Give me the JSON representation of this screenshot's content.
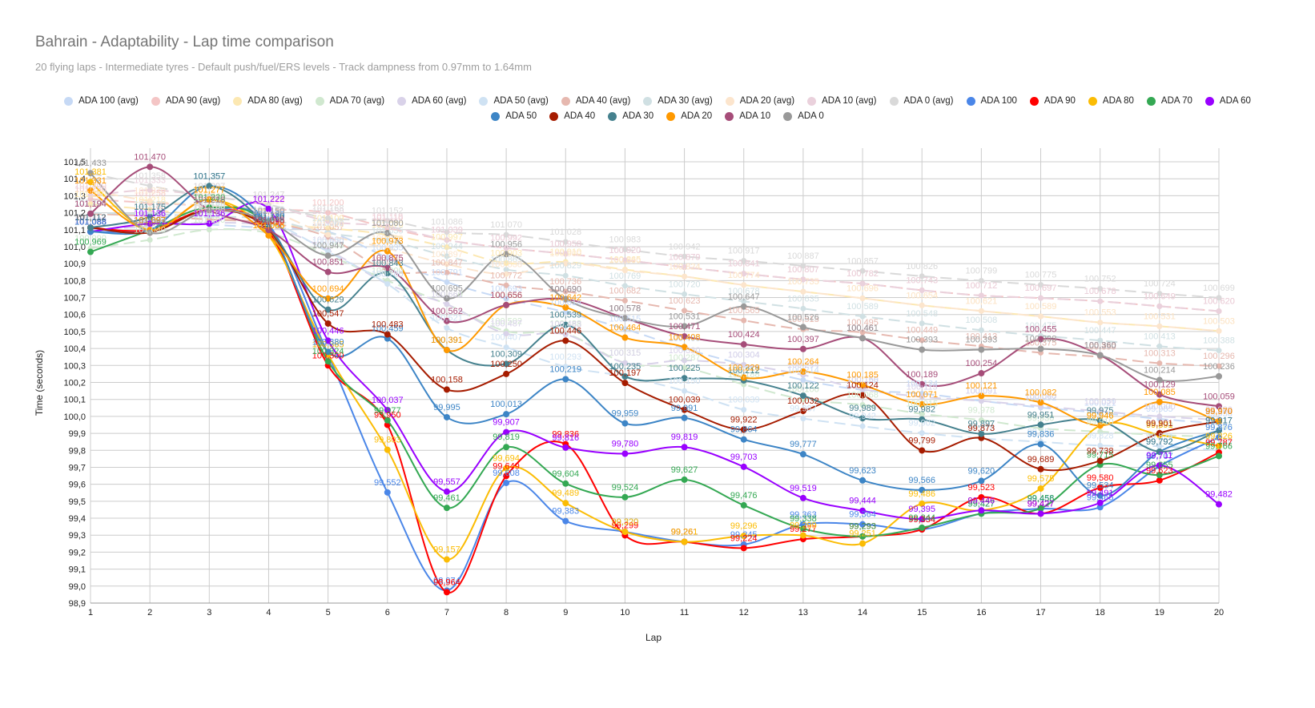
{
  "chart_data": {
    "type": "line",
    "title": "Bahrain - Adaptability - Lap time comparison",
    "subtitle": "20 flying laps - Intermediate tyres - Default push/fuel/ERS levels - Track dampness from 0.97mm to 1.64mm",
    "xlabel": "Lap",
    "ylabel": "Time (seconds)",
    "x": [
      1,
      2,
      3,
      4,
      5,
      6,
      7,
      8,
      9,
      10,
      11,
      12,
      13,
      14,
      15,
      16,
      17,
      18,
      19,
      20
    ],
    "x_tick_labels": [
      "1",
      "2",
      "3",
      "4",
      "5",
      "6",
      "7",
      "8",
      "9",
      "10",
      "11",
      "12",
      "13",
      "14",
      "15",
      "16",
      "17",
      "18",
      "19",
      "20"
    ],
    "ylim": [
      98.9,
      101.5
    ],
    "y_tick_labels": [
      "98,9",
      "99,0",
      "99,1",
      "99,2",
      "99,3",
      "99,4",
      "99,5",
      "99,6",
      "99,7",
      "99,8",
      "99,9",
      "100,0",
      "100,1",
      "100,2",
      "100,3",
      "100,4",
      "100,5",
      "100,6",
      "100,7",
      "100,8",
      "100,9",
      "101,0",
      "101,1",
      "101,2",
      "101,3",
      "101,4",
      "101,5"
    ],
    "grid": true,
    "legend_position": "top",
    "series": [
      {
        "name": "ADA 100 (avg)",
        "color": "#c6d9f5",
        "dashed": true,
        "values": [
          101.112,
          101.147,
          101.13,
          101.11,
          101.087,
          100.935,
          100.791,
          100.693,
          100.614,
          100.515,
          100.4,
          100.304,
          100.214,
          100.156,
          100.134,
          100.091,
          100.052,
          100.021,
          99.985,
          99.958
        ]
      },
      {
        "name": "ADA 90 (avg)",
        "color": "#f4c5c5",
        "dashed": true,
        "values": [
          101.28,
          101.258,
          101.24,
          101.22,
          101.2,
          101.11,
          101.039,
          100.992,
          100.958,
          100.92,
          100.879,
          100.841,
          100.807,
          100.782,
          100.743,
          100.712,
          100.697,
          100.678,
          100.649,
          100.62
        ]
      },
      {
        "name": "ADA 80 (avg)",
        "color": "#fce8b2",
        "dashed": true,
        "values": [
          101.25,
          101.218,
          101.18,
          101.13,
          101.109,
          101.07,
          100.997,
          100.903,
          100.91,
          100.865,
          100.824,
          100.774,
          100.735,
          100.696,
          100.654,
          100.621,
          100.589,
          100.553,
          100.531,
          100.503
        ]
      },
      {
        "name": "ADA 70 (avg)",
        "color": "#d0e8cf",
        "dashed": true,
        "values": [
          100.99,
          101.04,
          101.1,
          101.08,
          100.95,
          100.8,
          100.66,
          100.502,
          100.488,
          100.315,
          100.287,
          100.188,
          100.1,
          100.068,
          100.015,
          99.978,
          99.93,
          99.91,
          99.89,
          99.88
        ]
      },
      {
        "name": "ADA 60 (avg)",
        "color": "#d9d2e9",
        "dashed": true,
        "values": [
          101.1,
          101.12,
          101.14,
          101.12,
          100.98,
          100.78,
          100.661,
          100.487,
          100.483,
          100.315,
          100.33,
          100.304,
          100.244,
          100.16,
          100.115,
          100.091,
          100.06,
          100.03,
          100.0,
          99.98
        ]
      },
      {
        "name": "ADA 50 (avg)",
        "color": "#cfe2f3",
        "dashed": true,
        "values": [
          101.09,
          101.1,
          101.2,
          101.15,
          100.97,
          100.78,
          100.521,
          100.407,
          100.293,
          100.235,
          100.15,
          100.039,
          99.987,
          99.942,
          99.902,
          99.87,
          99.85,
          99.828,
          99.824,
          99.8
        ]
      },
      {
        "name": "ADA 40 (avg)",
        "color": "#e6b8af",
        "dashed": true,
        "values": [
          101.194,
          101.18,
          101.16,
          101.14,
          101.057,
          100.86,
          100.847,
          100.772,
          100.736,
          100.682,
          100.623,
          100.565,
          100.513,
          100.495,
          100.449,
          100.413,
          100.375,
          100.35,
          100.313,
          100.296
        ]
      },
      {
        "name": "ADA 30 (avg)",
        "color": "#d0e0e3",
        "dashed": true,
        "values": [
          101.2,
          101.19,
          101.18,
          101.16,
          101.08,
          101.035,
          100.944,
          100.865,
          100.829,
          100.769,
          100.72,
          100.678,
          100.635,
          100.589,
          100.548,
          100.508,
          100.475,
          100.447,
          100.413,
          100.388
        ]
      },
      {
        "name": "ADA 20 (avg)",
        "color": "#fce5cd",
        "dashed": true,
        "values": [
          101.331,
          101.27,
          101.24,
          101.21,
          101.07,
          100.99,
          100.897,
          100.838,
          100.9,
          100.86,
          100.824,
          100.774,
          100.735,
          100.696,
          100.654,
          100.621,
          100.589,
          100.553,
          100.531,
          100.503
        ]
      },
      {
        "name": "ADA 10 (avg)",
        "color": "#ead1dc",
        "dashed": true,
        "values": [
          101.3,
          101.333,
          101.297,
          101.247,
          101.15,
          101.119,
          101.039,
          100.992,
          100.958,
          100.92,
          100.879,
          100.841,
          100.807,
          100.782,
          100.743,
          100.712,
          100.697,
          100.678,
          100.649,
          100.62
        ]
      },
      {
        "name": "ADA 0 (avg)",
        "color": "#d9d9d9",
        "dashed": true,
        "values": [
          101.433,
          101.358,
          101.297,
          101.247,
          101.168,
          101.152,
          101.086,
          101.07,
          101.028,
          100.983,
          100.942,
          100.917,
          100.887,
          100.857,
          100.826,
          100.799,
          100.775,
          100.752,
          100.724,
          100.699
        ]
      },
      {
        "name": "ADA 100",
        "color": "#4a86e8",
        "dashed": false,
        "values": [
          101.088,
          101.097,
          101.216,
          101.13,
          100.365,
          99.552,
          98.974,
          99.608,
          99.383,
          99.32,
          99.261,
          99.245,
          99.363,
          99.364,
          99.334,
          99.427,
          99.456,
          99.465,
          99.707,
          99.876
        ]
      },
      {
        "name": "ADA 90",
        "color": "#ff0000",
        "dashed": false,
        "values": [
          101.112,
          101.097,
          101.216,
          101.09,
          100.3,
          99.95,
          98.964,
          99.649,
          99.836,
          99.299,
          99.261,
          99.224,
          99.277,
          99.293,
          99.334,
          99.523,
          99.427,
          99.58,
          99.623,
          99.787
        ]
      },
      {
        "name": "ADA 80",
        "color": "#fbbc04",
        "dashed": false,
        "values": [
          101.381,
          101.097,
          101.277,
          101.066,
          100.365,
          99.803,
          99.157,
          99.694,
          99.489,
          99.32,
          99.261,
          99.296,
          99.299,
          99.251,
          99.486,
          99.446,
          99.575,
          99.946,
          99.891,
          99.826
        ]
      },
      {
        "name": "ADA 70",
        "color": "#34a853",
        "dashed": false,
        "values": [
          100.969,
          101.097,
          101.23,
          101.11,
          100.324,
          99.977,
          99.461,
          99.819,
          99.604,
          99.524,
          99.627,
          99.476,
          99.338,
          99.293,
          99.344,
          99.427,
          99.458,
          99.715,
          99.655,
          99.766
        ]
      },
      {
        "name": "ADA 60",
        "color": "#9900ff",
        "dashed": false,
        "values": [
          101.088,
          101.136,
          101.136,
          101.222,
          100.446,
          100.037,
          99.557,
          99.907,
          99.816,
          99.78,
          99.819,
          99.703,
          99.519,
          99.444,
          99.395,
          99.446,
          99.427,
          99.491,
          99.711,
          99.482
        ]
      },
      {
        "name": "ADA 50",
        "color": "#3d85c6",
        "dashed": false,
        "values": [
          101.088,
          101.097,
          101.357,
          101.12,
          100.38,
          100.459,
          99.995,
          100.013,
          100.219,
          99.959,
          99.991,
          99.864,
          99.777,
          99.623,
          99.566,
          99.62,
          99.836,
          99.534,
          99.792,
          99.917
        ]
      },
      {
        "name": "ADA 40",
        "color": "#a61c00",
        "dashed": false,
        "values": [
          101.112,
          101.083,
          101.216,
          101.098,
          100.547,
          100.483,
          100.158,
          100.25,
          100.446,
          100.197,
          100.039,
          99.922,
          100.032,
          100.124,
          99.799,
          99.873,
          99.689,
          99.738,
          99.901,
          99.97
        ]
      },
      {
        "name": "ADA 30",
        "color": "#45818e",
        "dashed": false,
        "values": [
          101.112,
          101.175,
          101.357,
          101.11,
          100.629,
          100.843,
          100.391,
          100.309,
          100.539,
          100.235,
          100.225,
          100.212,
          100.122,
          99.989,
          99.982,
          99.897,
          99.951,
          99.975,
          99.792,
          99.917
        ]
      },
      {
        "name": "ADA 20",
        "color": "#ff9900",
        "dashed": false,
        "values": [
          101.331,
          101.097,
          101.277,
          101.066,
          100.694,
          100.973,
          100.391,
          100.656,
          100.642,
          100.464,
          100.408,
          100.229,
          100.264,
          100.185,
          100.071,
          100.121,
          100.082,
          99.946,
          100.085,
          99.97
        ]
      },
      {
        "name": "ADA 10",
        "color": "#a64d79",
        "dashed": false,
        "values": [
          101.194,
          101.47,
          101.216,
          101.098,
          100.851,
          100.875,
          100.562,
          100.656,
          100.69,
          100.578,
          100.471,
          100.424,
          100.397,
          100.461,
          100.189,
          100.254,
          100.455,
          100.36,
          100.129,
          100.059
        ]
      },
      {
        "name": "ADA 0",
        "color": "#999999",
        "dashed": false,
        "values": [
          101.433,
          101.083,
          101.216,
          101.15,
          100.947,
          101.08,
          100.695,
          100.956,
          100.69,
          100.578,
          100.531,
          100.647,
          100.526,
          100.461,
          100.393,
          100.393,
          100.398,
          100.36,
          100.214,
          100.236
        ]
      }
    ]
  }
}
